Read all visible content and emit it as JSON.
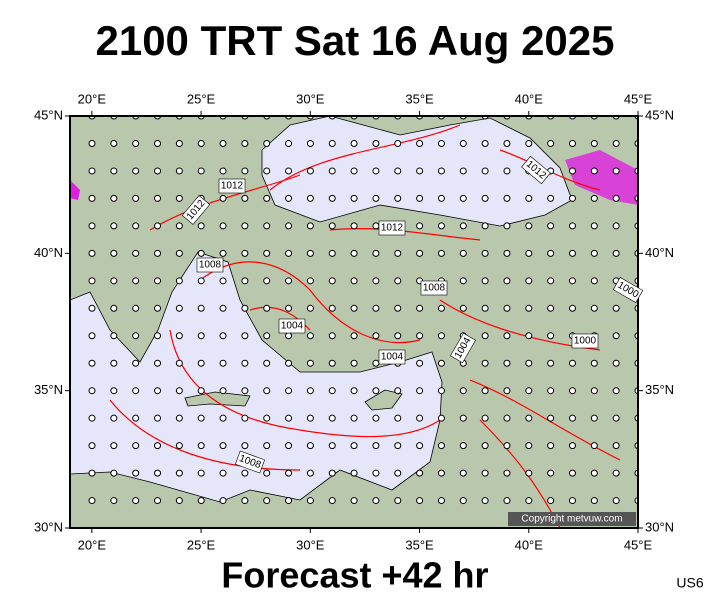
{
  "title": "2100 TRT Sat 16 Aug 2025",
  "footer": "Forecast +42 hr",
  "code": "US6",
  "copyright": "Copyright metvuw.com",
  "lon_range": [
    19,
    45
  ],
  "lat_range": [
    30,
    45
  ],
  "lon_ticks": [
    {
      "value": 20,
      "label": "20°E"
    },
    {
      "value": 25,
      "label": "25°E"
    },
    {
      "value": 30,
      "label": "30°E"
    },
    {
      "value": 35,
      "label": "35°E"
    },
    {
      "value": 40,
      "label": "40°E"
    },
    {
      "value": 45,
      "label": "45°E"
    }
  ],
  "lat_ticks": [
    {
      "value": 30,
      "label": "30°N"
    },
    {
      "value": 35,
      "label": "35°N"
    },
    {
      "value": 40,
      "label": "40°N"
    },
    {
      "value": 45,
      "label": "45°N"
    }
  ],
  "isobar_labels": [
    "1012",
    "1012",
    "1012",
    "1012",
    "1008",
    "1008",
    "1004",
    "1004",
    "1004",
    "1000",
    "1000",
    "1008"
  ]
}
